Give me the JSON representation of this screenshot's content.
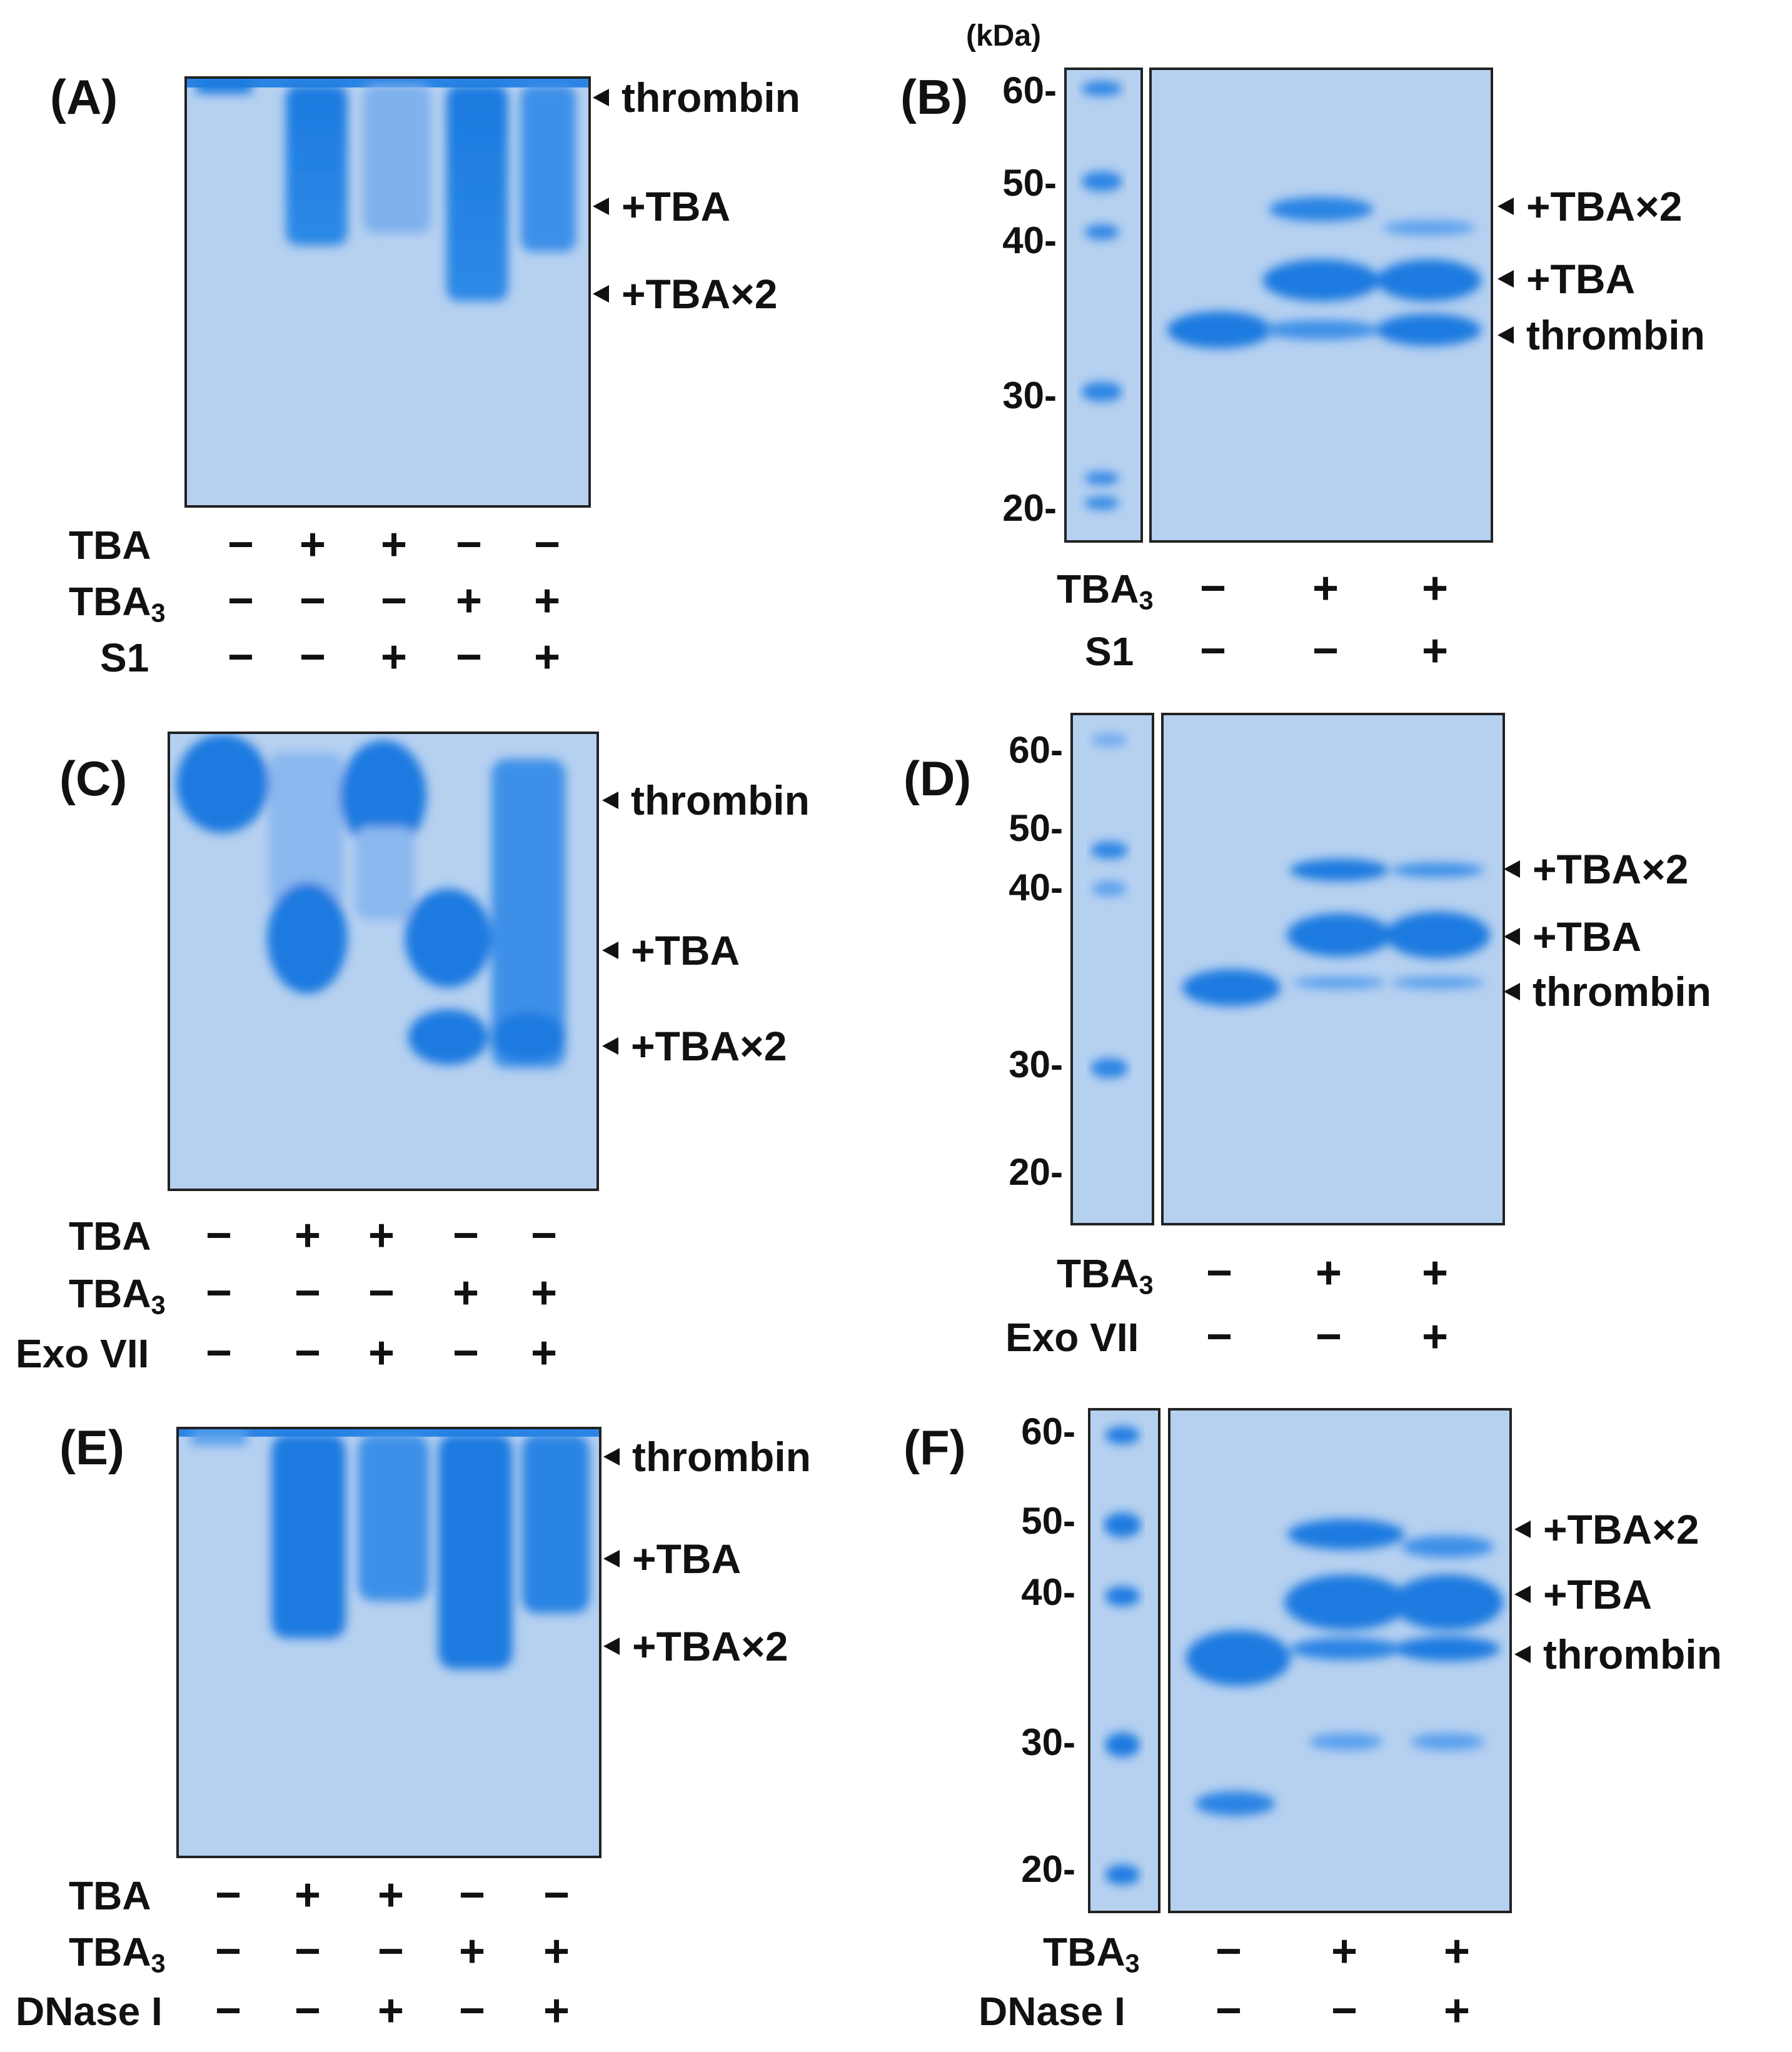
{
  "kda_label": "(kDa)",
  "mw_markers": [
    "60-",
    "50-",
    "40-",
    "30-",
    "20-"
  ],
  "colors": {
    "gel_bg": "#b6d0f0",
    "band": "#1a7ae0",
    "band_light": "#5aa0ee"
  },
  "native_labels": {
    "thrombin": "thrombin",
    "tba": "+TBA",
    "tba2": "+TBA×2"
  },
  "sds_labels": {
    "thrombin": "thrombin",
    "tba": "+TBA",
    "tba2": "+TBA×2"
  },
  "panels": {
    "A": {
      "label": "(A)",
      "rows": [
        {
          "name": "TBA",
          "sub": "",
          "signs": [
            "−",
            "+",
            "+",
            "−",
            "−"
          ]
        },
        {
          "name": "TBA",
          "sub": "3",
          "signs": [
            "−",
            "−",
            "−",
            "+",
            "+"
          ]
        },
        {
          "name": "S1",
          "sub": "",
          "signs": [
            "−",
            "−",
            "+",
            "−",
            "+"
          ]
        }
      ]
    },
    "B": {
      "label": "(B)",
      "rows": [
        {
          "name": "TBA",
          "sub": "3",
          "signs": [
            "−",
            "+",
            "+"
          ]
        },
        {
          "name": "S1",
          "sub": "",
          "signs": [
            "−",
            "−",
            "+"
          ]
        }
      ]
    },
    "C": {
      "label": "(C)",
      "rows": [
        {
          "name": "TBA",
          "sub": "",
          "signs": [
            "−",
            "+",
            "+",
            "−",
            "−"
          ]
        },
        {
          "name": "TBA",
          "sub": "3",
          "signs": [
            "−",
            "−",
            "−",
            "+",
            "+"
          ]
        },
        {
          "name": "Exo VII",
          "sub": "",
          "signs": [
            "−",
            "−",
            "+",
            "−",
            "+"
          ]
        }
      ]
    },
    "D": {
      "label": "(D)",
      "rows": [
        {
          "name": "TBA",
          "sub": "3",
          "signs": [
            "−",
            "+",
            "+"
          ]
        },
        {
          "name": "Exo VII",
          "sub": "",
          "signs": [
            "−",
            "−",
            "+"
          ]
        }
      ]
    },
    "E": {
      "label": "(E)",
      "rows": [
        {
          "name": "TBA",
          "sub": "",
          "signs": [
            "−",
            "+",
            "+",
            "−",
            "−"
          ]
        },
        {
          "name": "TBA",
          "sub": "3",
          "signs": [
            "−",
            "−",
            "−",
            "+",
            "+"
          ]
        },
        {
          "name": "DNase I",
          "sub": "",
          "signs": [
            "−",
            "−",
            "+",
            "−",
            "+"
          ]
        }
      ]
    },
    "F": {
      "label": "(F)",
      "rows": [
        {
          "name": "TBA",
          "sub": "3",
          "signs": [
            "−",
            "+",
            "+"
          ]
        },
        {
          "name": "DNase I",
          "sub": "",
          "signs": [
            "−",
            "−",
            "+"
          ]
        }
      ]
    }
  }
}
